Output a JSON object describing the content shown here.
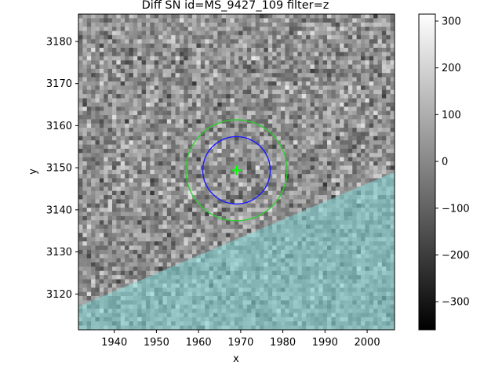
{
  "chart_data": {
    "type": "heatmap",
    "title": "Diff SN id=MS_9427_109 filter=z",
    "xlabel": "x",
    "ylabel": "y",
    "xlim": [
      1931.5,
      2006.5
    ],
    "ylim": [
      3111.5,
      3186.5
    ],
    "x_ticks": [
      "1940",
      "1950",
      "1960",
      "1970",
      "1980",
      "1990",
      "2000"
    ],
    "y_ticks": [
      "3120",
      "3130",
      "3140",
      "3150",
      "3160",
      "3170",
      "3180"
    ],
    "colormap": "gray",
    "colorbar": {
      "min": -360,
      "max": 315,
      "ticks": [
        "300",
        "200",
        "100",
        "0",
        "−100",
        "−200",
        "−300"
      ]
    },
    "mask": {
      "color": "#7fd6d6",
      "boundary_x": [
        1931.5,
        2006.5
      ],
      "boundary_y": [
        3117.0,
        3149.0
      ],
      "region": "below-line"
    },
    "markers": [
      {
        "name": "source-position",
        "shape": "plus",
        "x": 1969.0,
        "y": 3149.4,
        "color": "#00ff00"
      }
    ],
    "circles": [
      {
        "name": "inner-aperture",
        "x": 1969.0,
        "y": 3149.4,
        "r": 8.0,
        "color": "#1a1aff"
      },
      {
        "name": "outer-aperture",
        "x": 1969.0,
        "y": 3149.4,
        "r": 12.0,
        "color": "#2ecc2e"
      }
    ]
  }
}
